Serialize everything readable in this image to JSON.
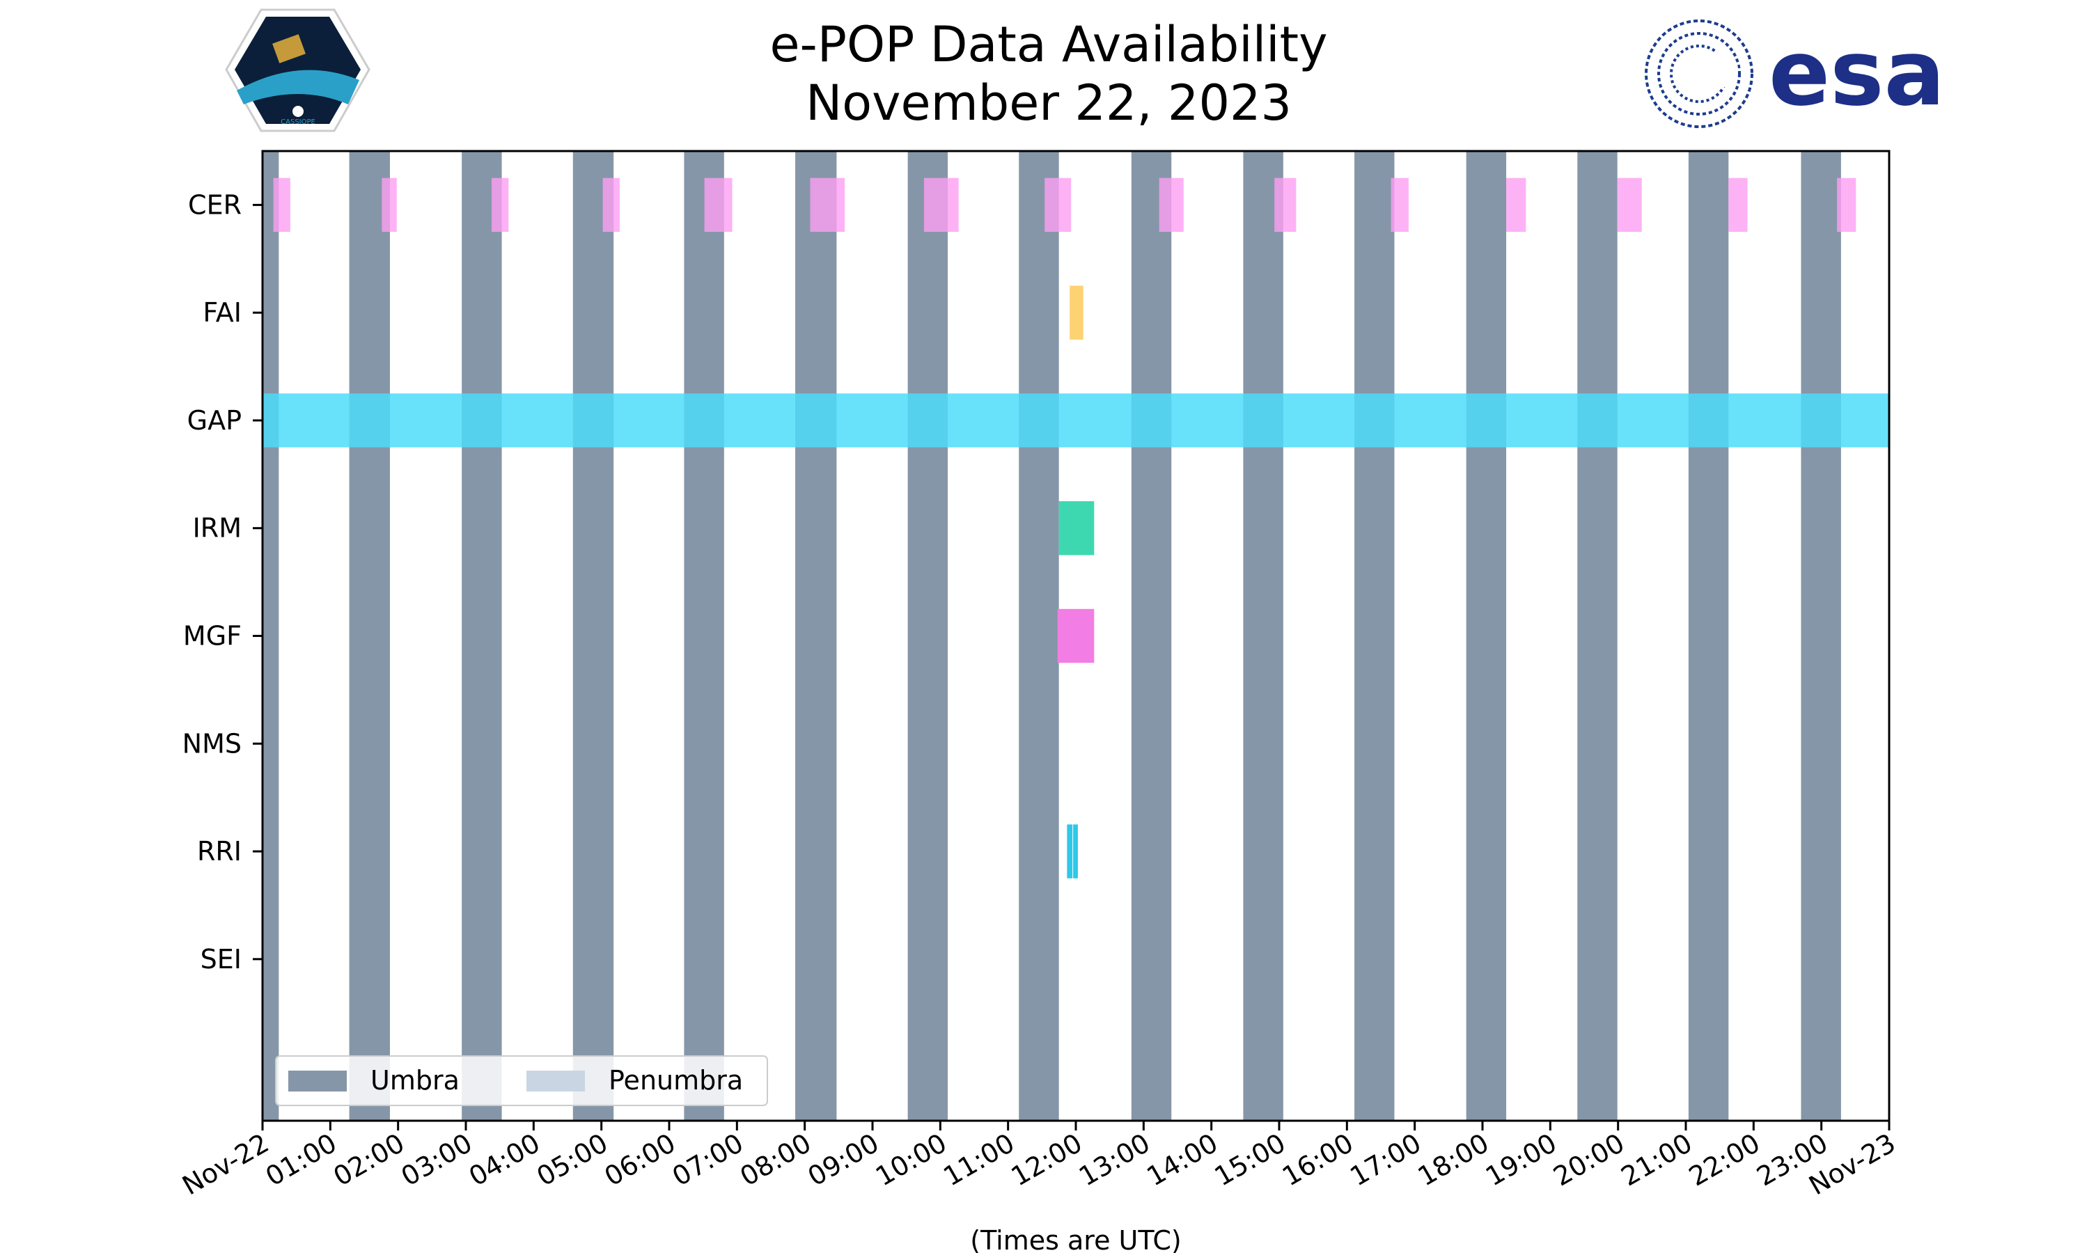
{
  "chart_data": {
    "type": "timeline",
    "title": "e-POP Data Availability",
    "subtitle": "November 22, 2023",
    "xlabel": "(Times are UTC)",
    "xlim_hours": [
      0,
      24
    ],
    "x_tick_labels": [
      "Nov-22",
      "01:00",
      "02:00",
      "03:00",
      "04:00",
      "05:00",
      "06:00",
      "07:00",
      "08:00",
      "09:00",
      "10:00",
      "11:00",
      "12:00",
      "13:00",
      "14:00",
      "15:00",
      "16:00",
      "17:00",
      "18:00",
      "19:00",
      "20:00",
      "21:00",
      "22:00",
      "23:00",
      "Nov-23"
    ],
    "instruments": [
      "CER",
      "FAI",
      "GAP",
      "IRM",
      "MGF",
      "NMS",
      "RRI",
      "SEI"
    ],
    "umbra_hours": [
      [
        0,
        0.24
      ],
      [
        1.28,
        1.88
      ],
      [
        2.94,
        3.53
      ],
      [
        4.58,
        5.18
      ],
      [
        6.22,
        6.81
      ],
      [
        7.86,
        8.47
      ],
      [
        9.52,
        10.11
      ],
      [
        11.16,
        11.75
      ],
      [
        12.82,
        13.41
      ],
      [
        14.47,
        15.06
      ],
      [
        16.11,
        16.7
      ],
      [
        17.76,
        18.35
      ],
      [
        19.4,
        19.99
      ],
      [
        21.04,
        21.63
      ],
      [
        22.7,
        23.29
      ]
    ],
    "series": [
      {
        "name": "CER",
        "color": "#fc9ff2",
        "intervals": [
          [
            0.16,
            0.41
          ],
          [
            1.76,
            1.98
          ],
          [
            3.38,
            3.63
          ],
          [
            5.02,
            5.27
          ],
          [
            6.52,
            6.93
          ],
          [
            8.08,
            8.59
          ],
          [
            9.76,
            10.27
          ],
          [
            11.54,
            11.93
          ],
          [
            13.23,
            13.59
          ],
          [
            14.93,
            15.25
          ],
          [
            16.65,
            16.91
          ],
          [
            18.35,
            18.64
          ],
          [
            19.99,
            20.35
          ],
          [
            21.63,
            21.91
          ],
          [
            23.23,
            23.51
          ]
        ]
      },
      {
        "name": "FAI",
        "color": "#fdd272",
        "intervals": [
          [
            11.91,
            12.11
          ]
        ]
      },
      {
        "name": "GAP",
        "color": "#4ddcf9",
        "intervals": [
          [
            0,
            21.13
          ],
          [
            21.13,
            22.85
          ],
          [
            22.85,
            24
          ]
        ]
      },
      {
        "name": "IRM",
        "color": "#3ed8b0",
        "intervals": [
          [
            11.75,
            12.27
          ]
        ]
      },
      {
        "name": "MGF",
        "color": "#f27de4",
        "intervals": [
          [
            11.73,
            12.27
          ]
        ]
      },
      {
        "name": "NMS",
        "color": "#888888",
        "intervals": []
      },
      {
        "name": "RRI",
        "color": "#2ec8e8",
        "intervals": [
          [
            11.87,
            11.95
          ],
          [
            11.96,
            12.03
          ]
        ]
      },
      {
        "name": "SEI",
        "color": "#888888",
        "intervals": []
      }
    ],
    "legend": {
      "position": "lower-left",
      "entries": [
        {
          "label": "Umbra",
          "color": "#8596a8"
        },
        {
          "label": "Penumbra",
          "color": "#c9d5e3"
        }
      ]
    }
  },
  "logos": {
    "left": "CASSIOPE",
    "right": "esa"
  }
}
